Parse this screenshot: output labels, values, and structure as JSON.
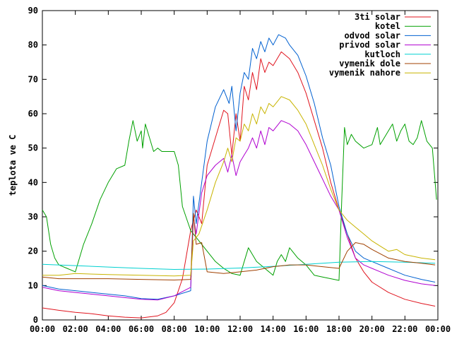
{
  "chart_data": {
    "type": "line",
    "title": "",
    "xlabel": "",
    "ylabel": "teplota ve C",
    "xlim": [
      "00:00",
      "24:00"
    ],
    "ylim": [
      0,
      90
    ],
    "x_ticks": [
      "00:00",
      "02:00",
      "04:00",
      "06:00",
      "08:00",
      "10:00",
      "12:00",
      "14:00",
      "16:00",
      "18:00",
      "20:00",
      "22:00",
      "00:00"
    ],
    "y_ticks": [
      0,
      10,
      20,
      30,
      40,
      50,
      60,
      70,
      80,
      90
    ],
    "grid": false,
    "legend_position": "top-right",
    "series": [
      {
        "name": "3ti solar",
        "color": "#e0141e",
        "points": [
          [
            "00:00",
            3.5
          ],
          [
            "01:00",
            2.8
          ],
          [
            "02:00",
            2.2
          ],
          [
            "03:00",
            1.8
          ],
          [
            "04:00",
            1.2
          ],
          [
            "05:00",
            0.8
          ],
          [
            "06:00",
            0.6
          ],
          [
            "07:00",
            1.2
          ],
          [
            "07:30",
            2.2
          ],
          [
            "08:00",
            5
          ],
          [
            "08:30",
            12
          ],
          [
            "09:00",
            26
          ],
          [
            "09:20",
            32
          ],
          [
            "09:40",
            28
          ],
          [
            "10:00",
            45
          ],
          [
            "10:30",
            53
          ],
          [
            "11:00",
            61
          ],
          [
            "11:15",
            60
          ],
          [
            "11:30",
            48
          ],
          [
            "11:45",
            60
          ],
          [
            "12:00",
            52
          ],
          [
            "12:15",
            68
          ],
          [
            "12:30",
            64
          ],
          [
            "12:45",
            72
          ],
          [
            "13:00",
            67
          ],
          [
            "13:15",
            76
          ],
          [
            "13:30",
            72
          ],
          [
            "13:45",
            75
          ],
          [
            "14:00",
            74
          ],
          [
            "14:30",
            78
          ],
          [
            "15:00",
            76
          ],
          [
            "15:30",
            72
          ],
          [
            "16:00",
            66
          ],
          [
            "16:30",
            58
          ],
          [
            "17:00",
            50
          ],
          [
            "17:30",
            40
          ],
          [
            "18:00",
            32
          ],
          [
            "18:30",
            25
          ],
          [
            "19:00",
            18
          ],
          [
            "19:30",
            14
          ],
          [
            "20:00",
            11
          ],
          [
            "21:00",
            8
          ],
          [
            "22:00",
            6
          ],
          [
            "23:00",
            4.8
          ],
          [
            "23:50",
            4
          ]
        ]
      },
      {
        "name": "kotel",
        "color": "#00a000",
        "points": [
          [
            "00:00",
            32
          ],
          [
            "00:15",
            30
          ],
          [
            "00:30",
            22
          ],
          [
            "00:45",
            18
          ],
          [
            "01:00",
            16
          ],
          [
            "01:30",
            15
          ],
          [
            "02:00",
            14
          ],
          [
            "02:30",
            22
          ],
          [
            "03:00",
            28
          ],
          [
            "03:30",
            35
          ],
          [
            "04:00",
            40
          ],
          [
            "04:30",
            44
          ],
          [
            "05:00",
            45
          ],
          [
            "05:15",
            52
          ],
          [
            "05:30",
            58
          ],
          [
            "05:45",
            52
          ],
          [
            "06:00",
            55
          ],
          [
            "06:05",
            50
          ],
          [
            "06:15",
            57
          ],
          [
            "06:30",
            53
          ],
          [
            "06:45",
            49
          ],
          [
            "07:00",
            50
          ],
          [
            "07:15",
            49
          ],
          [
            "07:30",
            49
          ],
          [
            "08:00",
            49
          ],
          [
            "08:15",
            45
          ],
          [
            "08:30",
            33
          ],
          [
            "09:00",
            26
          ],
          [
            "09:30",
            23
          ],
          [
            "10:00",
            20
          ],
          [
            "10:30",
            17
          ],
          [
            "11:00",
            15
          ],
          [
            "11:30",
            13.5
          ],
          [
            "12:00",
            13
          ],
          [
            "12:15",
            17
          ],
          [
            "12:30",
            21
          ],
          [
            "12:45",
            19
          ],
          [
            "13:00",
            17
          ],
          [
            "13:30",
            15
          ],
          [
            "14:00",
            13
          ],
          [
            "14:15",
            17
          ],
          [
            "14:30",
            19
          ],
          [
            "14:45",
            17
          ],
          [
            "15:00",
            21
          ],
          [
            "15:30",
            18
          ],
          [
            "16:00",
            16
          ],
          [
            "16:30",
            13
          ],
          [
            "17:00",
            12.5
          ],
          [
            "17:30",
            12
          ],
          [
            "18:00",
            11.5
          ],
          [
            "18:10",
            35
          ],
          [
            "18:20",
            56
          ],
          [
            "18:30",
            51
          ],
          [
            "18:45",
            54
          ],
          [
            "19:00",
            52
          ],
          [
            "19:30",
            50
          ],
          [
            "20:00",
            51
          ],
          [
            "20:20",
            56
          ],
          [
            "20:30",
            51
          ],
          [
            "21:00",
            55
          ],
          [
            "21:15",
            57
          ],
          [
            "21:30",
            52
          ],
          [
            "21:45",
            55
          ],
          [
            "22:00",
            57
          ],
          [
            "22:15",
            52
          ],
          [
            "22:30",
            51
          ],
          [
            "22:45",
            53
          ],
          [
            "23:00",
            58
          ],
          [
            "23:20",
            52
          ],
          [
            "23:40",
            50
          ],
          [
            "23:55",
            35
          ]
        ]
      },
      {
        "name": "odvod solar",
        "color": "#0060d0",
        "points": [
          [
            "00:00",
            10
          ],
          [
            "01:00",
            9
          ],
          [
            "02:00",
            8.5
          ],
          [
            "03:00",
            8
          ],
          [
            "04:00",
            7.5
          ],
          [
            "05:00",
            7
          ],
          [
            "06:00",
            6.2
          ],
          [
            "07:00",
            6
          ],
          [
            "08:00",
            7
          ],
          [
            "09:00",
            8.5
          ],
          [
            "09:10",
            36
          ],
          [
            "09:20",
            28
          ],
          [
            "09:40",
            40
          ],
          [
            "10:00",
            52
          ],
          [
            "10:30",
            62
          ],
          [
            "11:00",
            67
          ],
          [
            "11:20",
            63
          ],
          [
            "11:30",
            68
          ],
          [
            "11:45",
            55
          ],
          [
            "12:00",
            66
          ],
          [
            "12:15",
            72
          ],
          [
            "12:30",
            70
          ],
          [
            "12:45",
            79
          ],
          [
            "13:00",
            76
          ],
          [
            "13:15",
            81
          ],
          [
            "13:30",
            78
          ],
          [
            "13:45",
            82
          ],
          [
            "14:00",
            80
          ],
          [
            "14:20",
            83
          ],
          [
            "14:45",
            82
          ],
          [
            "15:00",
            80
          ],
          [
            "15:30",
            77
          ],
          [
            "16:00",
            71
          ],
          [
            "16:30",
            63
          ],
          [
            "17:00",
            53
          ],
          [
            "17:30",
            45
          ],
          [
            "18:00",
            33
          ],
          [
            "18:30",
            25
          ],
          [
            "19:00",
            20
          ],
          [
            "19:30",
            18
          ],
          [
            "20:00",
            17
          ],
          [
            "21:00",
            15
          ],
          [
            "22:00",
            13
          ],
          [
            "23:00",
            11.8
          ],
          [
            "23:50",
            11
          ]
        ]
      },
      {
        "name": "privod solar",
        "color": "#b000d0",
        "points": [
          [
            "00:00",
            9.5
          ],
          [
            "01:00",
            8.5
          ],
          [
            "02:00",
            8
          ],
          [
            "03:00",
            7.5
          ],
          [
            "04:00",
            7
          ],
          [
            "05:00",
            6.5
          ],
          [
            "06:00",
            6
          ],
          [
            "07:00",
            5.8
          ],
          [
            "08:00",
            7
          ],
          [
            "09:00",
            9.5
          ],
          [
            "09:10",
            30
          ],
          [
            "09:20",
            25
          ],
          [
            "09:40",
            37
          ],
          [
            "10:00",
            42
          ],
          [
            "10:30",
            45
          ],
          [
            "11:00",
            47
          ],
          [
            "11:15",
            43
          ],
          [
            "11:30",
            48
          ],
          [
            "11:45",
            42
          ],
          [
            "12:00",
            46
          ],
          [
            "12:15",
            48
          ],
          [
            "12:30",
            50
          ],
          [
            "12:45",
            53
          ],
          [
            "13:00",
            50
          ],
          [
            "13:15",
            55
          ],
          [
            "13:30",
            51
          ],
          [
            "13:45",
            56
          ],
          [
            "14:00",
            55
          ],
          [
            "14:30",
            58
          ],
          [
            "15:00",
            57
          ],
          [
            "15:30",
            55
          ],
          [
            "16:00",
            51
          ],
          [
            "16:30",
            46
          ],
          [
            "17:00",
            41
          ],
          [
            "17:30",
            36
          ],
          [
            "18:00",
            32
          ],
          [
            "18:30",
            24
          ],
          [
            "19:00",
            18
          ],
          [
            "19:30",
            16
          ],
          [
            "20:00",
            15
          ],
          [
            "21:00",
            13
          ],
          [
            "22:00",
            11.5
          ],
          [
            "23:00",
            10.5
          ],
          [
            "23:50",
            10
          ]
        ]
      },
      {
        "name": "kutloch",
        "color": "#00d0d0",
        "points": [
          [
            "00:00",
            16.2
          ],
          [
            "02:00",
            15.8
          ],
          [
            "04:00",
            15.4
          ],
          [
            "06:00",
            15
          ],
          [
            "08:00",
            14.7
          ],
          [
            "10:00",
            14.8
          ],
          [
            "12:00",
            15.1
          ],
          [
            "14:00",
            15.6
          ],
          [
            "16:00",
            16.2
          ],
          [
            "18:00",
            16.8
          ],
          [
            "20:00",
            17
          ],
          [
            "22:00",
            16.8
          ],
          [
            "23:50",
            16.5
          ]
        ]
      },
      {
        "name": "vymenik dole",
        "color": "#a04000",
        "points": [
          [
            "00:00",
            12.5
          ],
          [
            "01:00",
            12
          ],
          [
            "02:00",
            12
          ],
          [
            "04:00",
            12
          ],
          [
            "06:00",
            11.8
          ],
          [
            "08:00",
            11.6
          ],
          [
            "09:00",
            11.8
          ],
          [
            "09:10",
            31
          ],
          [
            "09:20",
            22
          ],
          [
            "09:40",
            22.5
          ],
          [
            "10:00",
            14
          ],
          [
            "11:00",
            13.5
          ],
          [
            "12:00",
            14
          ],
          [
            "13:00",
            14.5
          ],
          [
            "14:00",
            15.5
          ],
          [
            "15:00",
            16
          ],
          [
            "16:00",
            16
          ],
          [
            "17:00",
            15.5
          ],
          [
            "18:00",
            15
          ],
          [
            "18:30",
            20
          ],
          [
            "19:00",
            22.5
          ],
          [
            "19:30",
            22
          ],
          [
            "20:00",
            20.5
          ],
          [
            "21:00",
            18
          ],
          [
            "22:00",
            17
          ],
          [
            "23:00",
            16.5
          ],
          [
            "23:50",
            16
          ]
        ]
      },
      {
        "name": "vymenik nahore",
        "color": "#c8b400",
        "points": [
          [
            "00:00",
            13
          ],
          [
            "01:00",
            13
          ],
          [
            "02:00",
            13.5
          ],
          [
            "04:00",
            13.2
          ],
          [
            "06:00",
            13
          ],
          [
            "08:00",
            12.8
          ],
          [
            "09:00",
            13
          ],
          [
            "09:10",
            23
          ],
          [
            "09:30",
            25
          ],
          [
            "10:00",
            32
          ],
          [
            "10:30",
            40
          ],
          [
            "11:00",
            46
          ],
          [
            "11:15",
            50
          ],
          [
            "11:30",
            46
          ],
          [
            "11:45",
            53
          ],
          [
            "12:00",
            52
          ],
          [
            "12:15",
            57
          ],
          [
            "12:30",
            55
          ],
          [
            "12:45",
            60
          ],
          [
            "13:00",
            57
          ],
          [
            "13:15",
            62
          ],
          [
            "13:30",
            60
          ],
          [
            "13:45",
            63
          ],
          [
            "14:00",
            62
          ],
          [
            "14:30",
            65
          ],
          [
            "15:00",
            64
          ],
          [
            "15:30",
            61
          ],
          [
            "16:00",
            57
          ],
          [
            "16:30",
            51
          ],
          [
            "17:00",
            45
          ],
          [
            "17:30",
            38
          ],
          [
            "18:00",
            32
          ],
          [
            "18:30",
            29
          ],
          [
            "19:00",
            27
          ],
          [
            "19:30",
            25
          ],
          [
            "20:00",
            23
          ],
          [
            "20:30",
            21.5
          ],
          [
            "21:00",
            20
          ],
          [
            "21:30",
            20.5
          ],
          [
            "22:00",
            19
          ],
          [
            "23:00",
            18
          ],
          [
            "23:50",
            17.5
          ]
        ]
      }
    ]
  }
}
